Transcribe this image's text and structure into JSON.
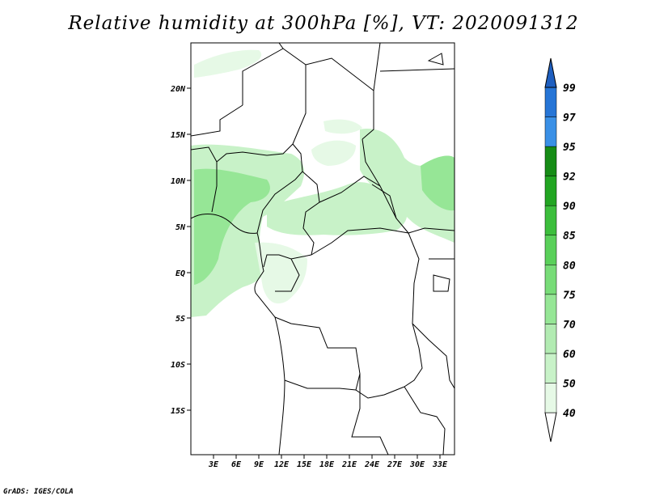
{
  "title": "Relative humidity at 300hPa [%], VT: 2020091312",
  "credit": "GrADS: IGES/COLA",
  "map": {
    "lat_labels": [
      "20N",
      "15N",
      "10N",
      "5N",
      "EQ",
      "5S",
      "10S",
      "15S"
    ],
    "lon_labels": [
      "3E",
      "6E",
      "9E",
      "12E",
      "15E",
      "18E",
      "21E",
      "24E",
      "27E",
      "30E",
      "33E"
    ]
  },
  "colorbar": {
    "levels": [
      "40",
      "50",
      "60",
      "70",
      "75",
      "80",
      "85",
      "90",
      "92",
      "95",
      "97",
      "99"
    ],
    "colors": [
      "#ffffff",
      "#e6f9e6",
      "#c8f2c8",
      "#b2ebb2",
      "#96e696",
      "#78dc78",
      "#5ad05a",
      "#3cbe3c",
      "#22a522",
      "#168c16",
      "#3a90e6",
      "#2675d6",
      "#1e5fc0"
    ]
  }
}
